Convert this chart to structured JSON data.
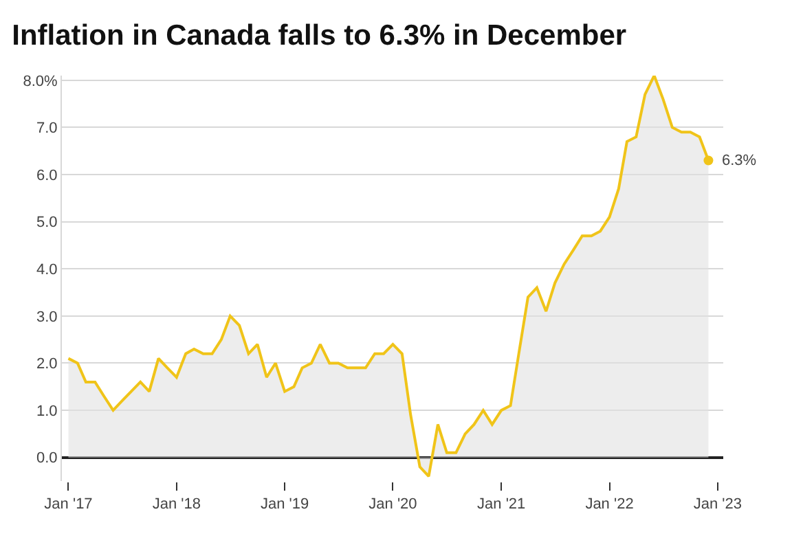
{
  "chart_data": {
    "type": "area",
    "title": "Inflation in Canada falls to 6.3% in December",
    "x": [
      "2017-01",
      "2017-02",
      "2017-03",
      "2017-04",
      "2017-05",
      "2017-06",
      "2017-07",
      "2017-08",
      "2017-09",
      "2017-10",
      "2017-11",
      "2017-12",
      "2018-01",
      "2018-02",
      "2018-03",
      "2018-04",
      "2018-05",
      "2018-06",
      "2018-07",
      "2018-08",
      "2018-09",
      "2018-10",
      "2018-11",
      "2018-12",
      "2019-01",
      "2019-02",
      "2019-03",
      "2019-04",
      "2019-05",
      "2019-06",
      "2019-07",
      "2019-08",
      "2019-09",
      "2019-10",
      "2019-11",
      "2019-12",
      "2020-01",
      "2020-02",
      "2020-03",
      "2020-04",
      "2020-05",
      "2020-06",
      "2020-07",
      "2020-08",
      "2020-09",
      "2020-10",
      "2020-11",
      "2020-12",
      "2021-01",
      "2021-02",
      "2021-03",
      "2021-04",
      "2021-05",
      "2021-06",
      "2021-07",
      "2021-08",
      "2021-09",
      "2021-10",
      "2021-11",
      "2021-12",
      "2022-01",
      "2022-02",
      "2022-03",
      "2022-04",
      "2022-05",
      "2022-06",
      "2022-07",
      "2022-08",
      "2022-09",
      "2022-10",
      "2022-11",
      "2022-12"
    ],
    "series": [
      {
        "color": "#f0c419",
        "values": [
          2.1,
          2.0,
          1.6,
          1.6,
          1.3,
          1.0,
          1.2,
          1.4,
          1.6,
          1.4,
          2.1,
          1.9,
          1.7,
          2.2,
          2.3,
          2.2,
          2.2,
          2.5,
          3.0,
          2.8,
          2.2,
          2.4,
          1.7,
          2.0,
          1.4,
          1.5,
          1.9,
          2.0,
          2.4,
          2.0,
          2.0,
          1.9,
          1.9,
          1.9,
          2.2,
          2.2,
          2.4,
          2.2,
          0.9,
          -0.2,
          -0.4,
          0.7,
          0.1,
          0.1,
          0.5,
          0.7,
          1.0,
          0.7,
          1.0,
          1.1,
          2.2,
          3.4,
          3.6,
          3.1,
          3.7,
          4.1,
          4.4,
          4.7,
          4.7,
          4.8,
          5.1,
          5.7,
          6.7,
          6.8,
          7.7,
          8.1,
          7.6,
          7.0,
          6.9,
          6.9,
          6.8,
          6.3
        ]
      }
    ],
    "xlim": [
      "2016-12-10",
      "2023-01-20"
    ],
    "xticks": [
      {
        "value": "2017-01",
        "label": "Jan '17"
      },
      {
        "value": "2018-01",
        "label": "Jan '18"
      },
      {
        "value": "2019-01",
        "label": "Jan '19"
      },
      {
        "value": "2020-01",
        "label": "Jan '20"
      },
      {
        "value": "2021-01",
        "label": "Jan '21"
      },
      {
        "value": "2022-01",
        "label": "Jan '22"
      },
      {
        "value": "2023-01",
        "label": "Jan '23"
      }
    ],
    "ylim": [
      -0.5,
      8.1
    ],
    "yticks": [
      {
        "value": 0,
        "label": "0.0"
      },
      {
        "value": 1,
        "label": "1.0"
      },
      {
        "value": 2,
        "label": "2.0"
      },
      {
        "value": 3,
        "label": "3.0"
      },
      {
        "value": 4,
        "label": "4.0"
      },
      {
        "value": 5,
        "label": "5.0"
      },
      {
        "value": 6,
        "label": "6.0"
      },
      {
        "value": 7,
        "label": "7.0"
      },
      {
        "value": 8,
        "label": "8.0%"
      }
    ],
    "grid": "y",
    "marker": "none",
    "annotations": [
      {
        "text": "6.3%",
        "x": "2022-12",
        "y": 6.3
      }
    ]
  }
}
